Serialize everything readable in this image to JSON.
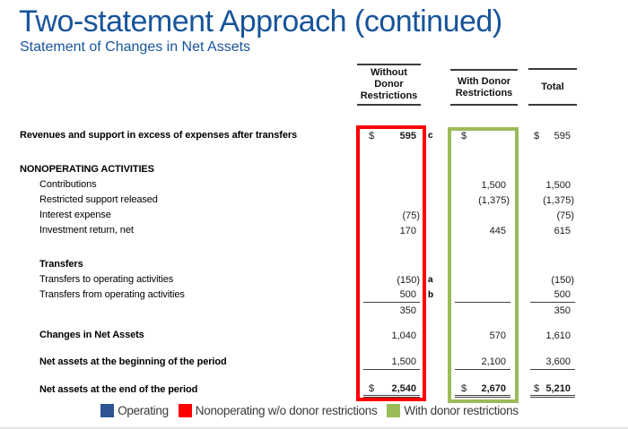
{
  "slide": {
    "title": "Two-statement Approach (continued)",
    "subtitle": "Statement of Changes in Net Assets",
    "title_color": "#17549B"
  },
  "table": {
    "headers": [
      {
        "id": "without-donor-restrictions",
        "lines": [
          "Without",
          "Donor",
          "Restrictions"
        ]
      },
      {
        "id": "with-donor-restrictions",
        "lines": [
          "With Donor",
          "Restrictions"
        ]
      },
      {
        "id": "total",
        "lines": [
          "Total"
        ]
      }
    ],
    "rows": [
      {
        "type": "row",
        "label": "Revenues and support in excess of expenses after transfers",
        "indent": 0,
        "bold": true,
        "note": "c",
        "cells": [
          {
            "dollar": "$",
            "value": "595",
            "bold": true
          },
          {
            "dollar": "$"
          },
          {
            "dollar": "$",
            "value": "595"
          }
        ]
      },
      {
        "type": "spacer",
        "height": 21
      },
      {
        "type": "row",
        "label": "NONOPERATING ACTIVITIES",
        "indent": 0,
        "bold": true,
        "cells": [
          {},
          {},
          {}
        ]
      },
      {
        "type": "row",
        "label": "Contributions",
        "indent": 1,
        "cells": [
          {},
          {
            "value": "1,500"
          },
          {
            "value": "1,500"
          }
        ]
      },
      {
        "type": "row",
        "label": "Restricted support released",
        "indent": 1,
        "cells": [
          {},
          {
            "value": "(1,375)",
            "paren": true
          },
          {
            "value": "(1,375)",
            "paren": true
          }
        ]
      },
      {
        "type": "row",
        "label": "Interest expense",
        "indent": 1,
        "cells": [
          {
            "value": "(75)",
            "paren": true
          },
          {},
          {
            "value": "(75)",
            "paren": true
          }
        ]
      },
      {
        "type": "row",
        "label": "Investment return, net",
        "indent": 1,
        "cells": [
          {
            "value": "170"
          },
          {
            "value": "445"
          },
          {
            "value": "615"
          }
        ]
      },
      {
        "type": "spacer",
        "height": 21
      },
      {
        "type": "row",
        "label": "Transfers",
        "indent": 1,
        "bold": true,
        "cells": [
          {},
          {},
          {}
        ]
      },
      {
        "type": "row",
        "label": "Transfers to operating activities",
        "indent": 1,
        "note": "a",
        "cells": [
          {
            "value": "(150)",
            "paren": true
          },
          {},
          {
            "value": "(150)",
            "paren": true
          }
        ]
      },
      {
        "type": "row",
        "label": "Transfers from operating activities",
        "indent": 1,
        "note": "b",
        "underline": "single",
        "cells": [
          {
            "value": "500"
          },
          {},
          {
            "value": "500"
          }
        ]
      },
      {
        "type": "row",
        "label": "",
        "indent": 1,
        "cells": [
          {
            "value": "350"
          },
          {},
          {
            "value": "350"
          }
        ]
      },
      {
        "type": "spacer",
        "height": 11
      },
      {
        "type": "row",
        "label": "Changes in Net Assets",
        "indent": 1,
        "bold": true,
        "cells": [
          {
            "value": "1,040"
          },
          {
            "value": "570"
          },
          {
            "value": "1,610"
          }
        ]
      },
      {
        "type": "spacer",
        "height": 13
      },
      {
        "type": "row",
        "label": "Net assets at the beginning of the period",
        "indent": 1,
        "bold": true,
        "underline": "single",
        "cells": [
          {
            "value": "1,500"
          },
          {
            "value": "2,100"
          },
          {
            "value": "3,600"
          }
        ]
      },
      {
        "type": "spacer",
        "height": 14
      },
      {
        "type": "row",
        "label": "Net assets at the end of the period",
        "indent": 1,
        "bold": true,
        "underline": "double",
        "cells": [
          {
            "dollar": "$",
            "value": "2,540",
            "bold": true
          },
          {
            "dollar": "$",
            "value": "2,670",
            "bold": true
          },
          {
            "dollar": "$",
            "value": "5,210",
            "bold": true
          }
        ]
      }
    ]
  },
  "highlights": {
    "nonoperating_box_color": "#FE0000",
    "with_donor_box_color": "#9BBB59"
  },
  "legend": {
    "items": [
      {
        "label": "Operating",
        "color": "#2F5496"
      },
      {
        "label": "Nonoperating w/o donor restrictions",
        "color": "#FF0000"
      },
      {
        "label": "With donor restrictions",
        "color": "#9BBB59"
      }
    ]
  }
}
